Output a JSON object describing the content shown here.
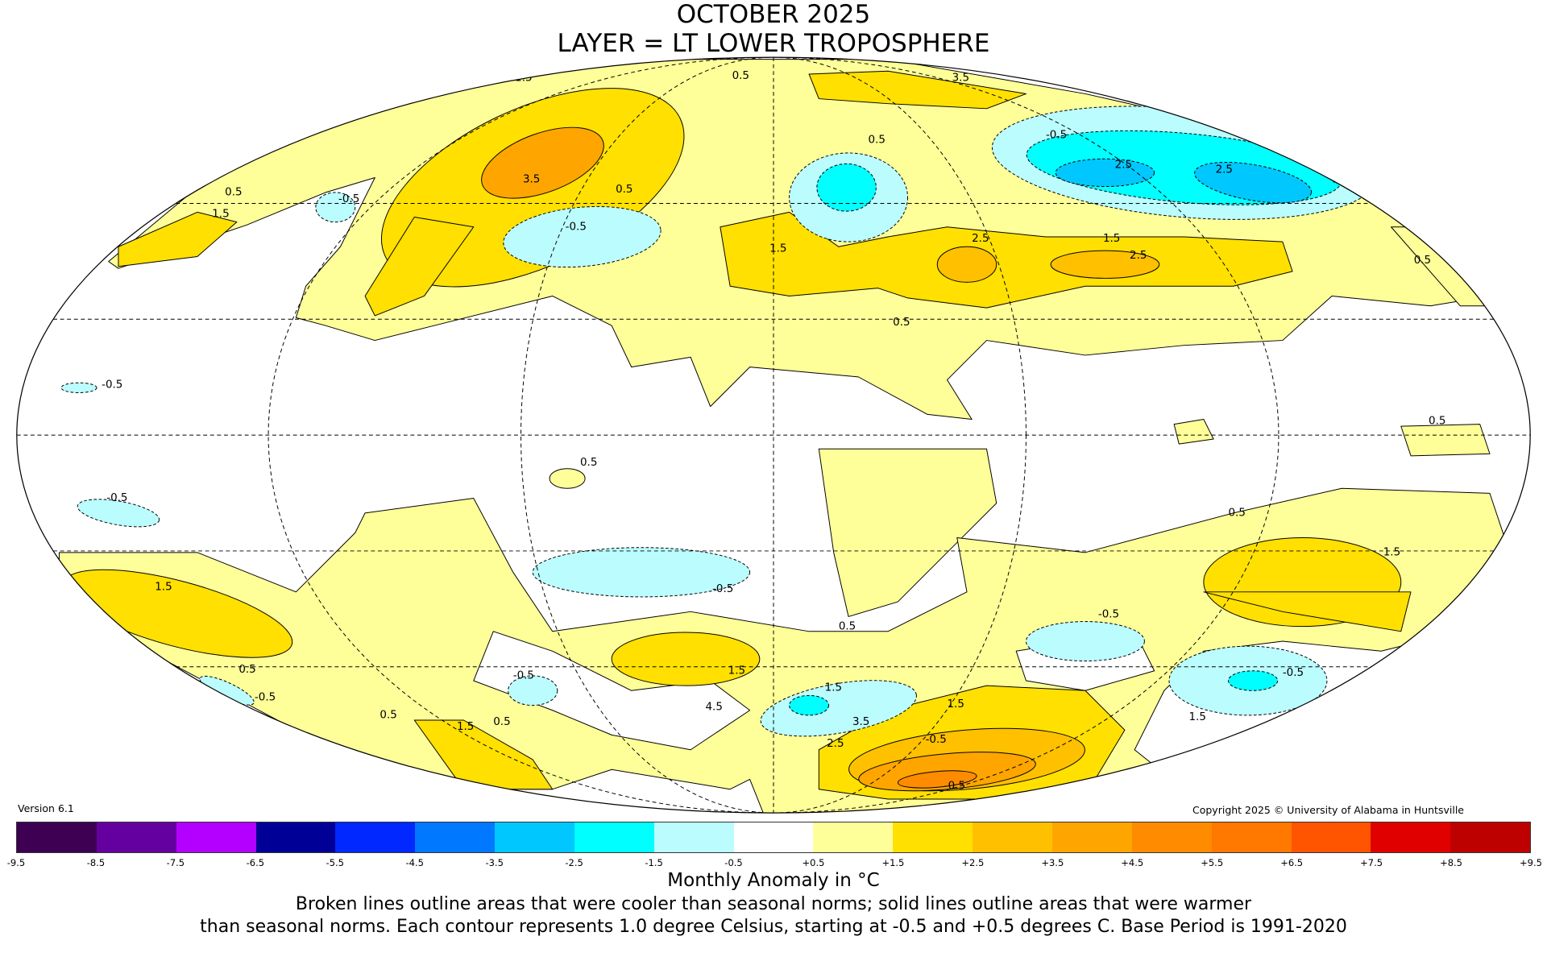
{
  "title_line1": "OCTOBER 2025",
  "title_line2": "LAYER = LT LOWER TROPOSPHERE",
  "version": "Version 6.1",
  "copyright": "Copyright 2025 © University of Alabama in Huntsville",
  "colorbar": {
    "label": "Monthly Anomaly in °C",
    "ticks": [
      "-9.5",
      "-8.5",
      "-7.5",
      "-6.5",
      "-5.5",
      "-4.5",
      "-3.5",
      "-2.5",
      "-1.5",
      "-0.5",
      "+0.5",
      "+1.5",
      "+2.5",
      "+3.5",
      "+4.5",
      "+5.5",
      "+6.5",
      "+7.5",
      "+8.5",
      "+9.5"
    ],
    "colors": [
      "#3d0052",
      "#6400a0",
      "#b400ff",
      "#000096",
      "#0028ff",
      "#0078ff",
      "#00c8ff",
      "#00ffff",
      "#bbfcff",
      "#ffffff",
      "#ffff99",
      "#ffe000",
      "#ffc000",
      "#ffa500",
      "#ff8c00",
      "#ff7800",
      "#ff5500",
      "#e10000",
      "#bd0000"
    ]
  },
  "caption_line1": "Broken lines outline areas that were cooler than seasonal norms; solid lines outline areas that were warmer",
  "caption_line2": "than seasonal norms. Each contour represents 1.0 degree Celsius, starting at -0.5 and +0.5 degrees C. Base Period is 1991-2020",
  "chart_data": {
    "type": "heatmap",
    "projection": "mollweide",
    "title": "OCTOBER 2025 / LAYER = LT LOWER TROPOSPHERE",
    "units": "°C",
    "contour_interval": 1.0,
    "base_period": "1991-2020",
    "contour_labels": [
      "1.5",
      "0.5",
      "2.5",
      "3.5",
      "0.5",
      "-0.5",
      "2.5",
      "2.5",
      "1.5",
      "0.5",
      "1.5",
      "-0.5",
      "3.5",
      "0.5",
      "-0.5",
      "1.5",
      "1.5",
      "2.5",
      "0.5",
      "-0.5",
      "0.5",
      "0.5",
      "-0.5",
      "0.5",
      "1.5",
      "-0.5",
      "0.5",
      "1.5",
      "-0.5",
      "0.5",
      "-0.5",
      "1.5",
      "0.5",
      "-0.5",
      "1.5",
      "-0.5",
      "0.5",
      "1.5",
      "0.5",
      "3.5",
      "4.5",
      "1.5",
      "2.5",
      "-0.5",
      "-0.5",
      "1.5"
    ]
  }
}
